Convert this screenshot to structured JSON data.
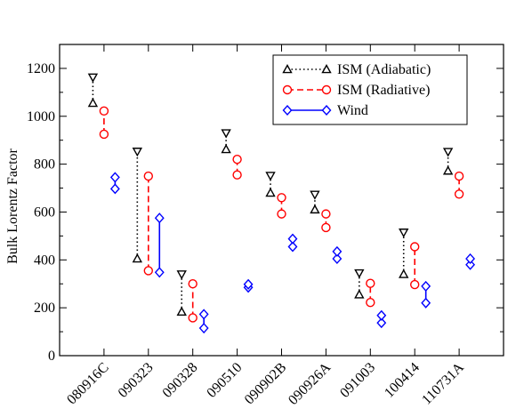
{
  "chart_data": {
    "type": "scatter",
    "ylabel": "Bulk Lorentz Factor",
    "xlabel": "",
    "ylim": [
      0,
      1300
    ],
    "yticks": [
      0,
      200,
      400,
      600,
      800,
      1000,
      1200
    ],
    "categories": [
      "080916C",
      "090323",
      "090328",
      "090510",
      "090902B",
      "090926A",
      "091003",
      "100414",
      "110731A"
    ],
    "series": [
      {
        "name": "ISM (Adiabatic)",
        "color": "#000000",
        "line_style": "dotted",
        "offset": -0.25,
        "lower": [
          1055,
          405,
          183,
          862,
          680,
          610,
          255,
          340,
          772
        ],
        "upper": [
          1163,
          853,
          340,
          930,
          752,
          673,
          345,
          515,
          852
        ]
      },
      {
        "name": "ISM (Radiative)",
        "color": "#ff0000",
        "line_style": "dashed",
        "offset": 0,
        "lower": [
          925,
          355,
          158,
          755,
          592,
          535,
          222,
          297,
          675
        ],
        "upper": [
          1022,
          750,
          300,
          820,
          660,
          592,
          302,
          455,
          750
        ]
      },
      {
        "name": "Wind",
        "color": "#0000ff",
        "line_style": "solid",
        "offset": 0.25,
        "lower": [
          697,
          348,
          115,
          285,
          455,
          405,
          137,
          220,
          380
        ],
        "upper": [
          745,
          575,
          173,
          298,
          488,
          435,
          168,
          290,
          405
        ]
      }
    ],
    "legend": "top-right",
    "grid": false
  }
}
